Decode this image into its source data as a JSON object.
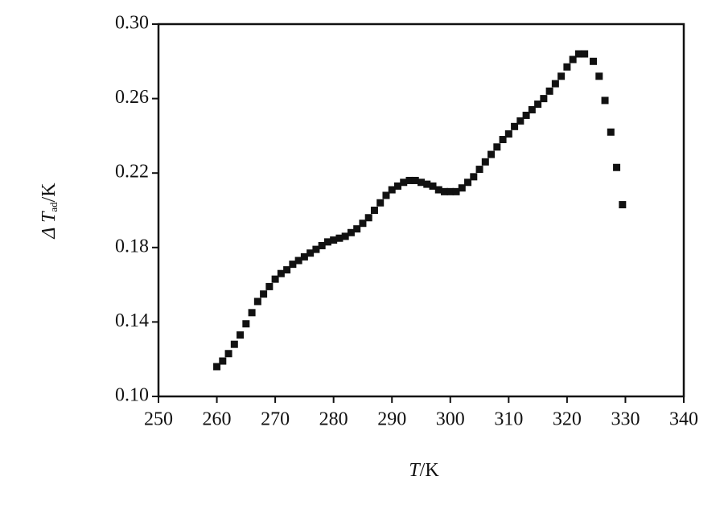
{
  "chart_data": {
    "type": "scatter",
    "x_label": {
      "symbol": "T",
      "unit": "/K"
    },
    "y_label": {
      "symbol": "Δ T",
      "subscript": "ad",
      "unit": "/K"
    },
    "color": "#111111",
    "x": [
      260,
      261,
      262,
      263,
      264,
      265,
      266,
      267,
      268,
      269,
      270,
      271,
      272,
      273,
      274,
      275,
      276,
      277,
      278,
      279,
      280,
      281,
      282,
      283,
      284,
      285,
      286,
      287,
      288,
      289,
      290,
      291,
      292,
      293,
      294,
      295,
      296,
      297,
      298,
      299,
      300,
      301,
      302,
      303,
      304,
      305,
      306,
      307,
      308,
      309,
      310,
      311,
      312,
      313,
      314,
      315,
      316,
      317,
      318,
      319,
      320,
      321,
      322,
      323,
      324.5,
      325.5,
      326.5,
      327.5,
      328.5,
      329.5
    ],
    "values": [
      0.116,
      0.119,
      0.123,
      0.128,
      0.133,
      0.139,
      0.145,
      0.151,
      0.155,
      0.159,
      0.163,
      0.166,
      0.168,
      0.171,
      0.173,
      0.175,
      0.177,
      0.179,
      0.181,
      0.183,
      0.184,
      0.185,
      0.186,
      0.188,
      0.19,
      0.193,
      0.196,
      0.2,
      0.204,
      0.208,
      0.211,
      0.213,
      0.215,
      0.216,
      0.216,
      0.215,
      0.214,
      0.213,
      0.211,
      0.21,
      0.21,
      0.21,
      0.212,
      0.215,
      0.218,
      0.222,
      0.226,
      0.23,
      0.234,
      0.238,
      0.241,
      0.245,
      0.248,
      0.251,
      0.254,
      0.257,
      0.26,
      0.264,
      0.268,
      0.272,
      0.277,
      0.281,
      0.284,
      0.284,
      0.28,
      0.272,
      0.259,
      0.242,
      0.223,
      0.203
    ],
    "xlim": [
      250,
      340
    ],
    "xticks": [
      250,
      260,
      270,
      280,
      290,
      300,
      310,
      320,
      330,
      340
    ],
    "ylim": [
      0.1,
      0.3
    ],
    "yticks": [
      {
        "value": 0.1,
        "label": "0.10"
      },
      {
        "value": 0.14,
        "label": "0.14"
      },
      {
        "value": 0.18,
        "label": "0.18"
      },
      {
        "value": 0.22,
        "label": "0.22"
      },
      {
        "value": 0.26,
        "label": "0.26"
      },
      {
        "value": 0.3,
        "label": "0.30"
      }
    ],
    "grid": false
  }
}
